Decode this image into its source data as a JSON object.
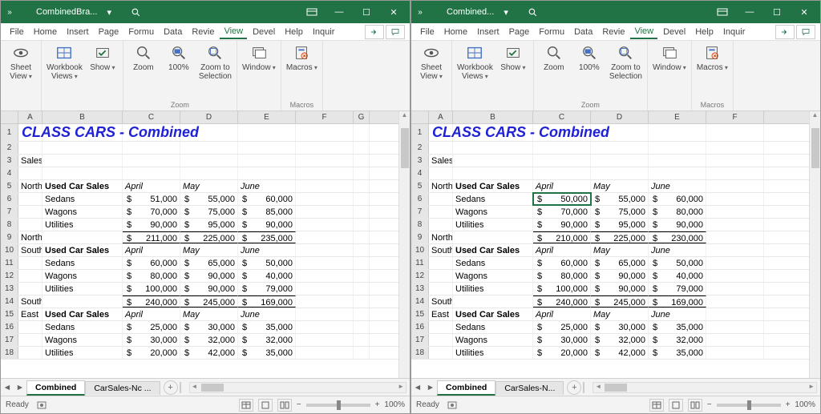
{
  "windows": [
    {
      "doc_name": "CombinedBra...",
      "selected_cell": null,
      "selected_value": null,
      "rows": [
        [
          "North",
          "Used Car Sales",
          "April",
          "May",
          "June"
        ],
        [
          "",
          "Sedans",
          "$   51,000",
          "$   55,000",
          "$   60,000"
        ],
        [
          "",
          "Wagons",
          "$   70,000",
          "$   75,000",
          "$   85,000"
        ],
        [
          "",
          "Utilities",
          "$   90,000",
          "$   95,000",
          "$   90,000"
        ],
        [
          "North Total",
          "",
          "$ 211,000",
          "$ 225,000",
          "$ 235,000"
        ],
        [
          "South",
          "Used Car Sales",
          "April",
          "May",
          "June"
        ],
        [
          "",
          "Sedans",
          "$   60,000",
          "$   65,000",
          "$   50,000"
        ],
        [
          "",
          "Wagons",
          "$   80,000",
          "$   90,000",
          "$   40,000"
        ],
        [
          "",
          "Utilities",
          "$ 100,000",
          "$   90,000",
          "$   79,000"
        ],
        [
          "South Total",
          "",
          "$ 240,000",
          "$ 245,000",
          "$ 169,000"
        ],
        [
          "East",
          "Used Car Sales",
          "April",
          "May",
          "June"
        ],
        [
          "",
          "Sedans",
          "$   25,000",
          "$   30,000",
          "$   35,000"
        ],
        [
          "",
          "Wagons",
          "$   30,000",
          "$   32,000",
          "$   32,000"
        ],
        [
          "",
          "Utilities",
          "$   20,000",
          "$   42,000",
          "$   35,000"
        ]
      ],
      "tabs": {
        "active": "Combined",
        "other": "CarSales-Nc ..."
      }
    },
    {
      "doc_name": "Combined...",
      "selected_cell": "C6",
      "selected_value": "$   50,000",
      "rows": [
        [
          "North",
          "Used Car Sales",
          "April",
          "May",
          "June"
        ],
        [
          "",
          "Sedans",
          "$   50,000",
          "$   55,000",
          "$   60,000"
        ],
        [
          "",
          "Wagons",
          "$   70,000",
          "$   75,000",
          "$   80,000"
        ],
        [
          "",
          "Utilities",
          "$   90,000",
          "$   95,000",
          "$   90,000"
        ],
        [
          "North Total",
          "",
          "$ 210,000",
          "$ 225,000",
          "$ 230,000"
        ],
        [
          "South",
          "Used Car Sales",
          "April",
          "May",
          "June"
        ],
        [
          "",
          "Sedans",
          "$   60,000",
          "$   65,000",
          "$   50,000"
        ],
        [
          "",
          "Wagons",
          "$   80,000",
          "$   90,000",
          "$   40,000"
        ],
        [
          "",
          "Utilities",
          "$ 100,000",
          "$   90,000",
          "$   79,000"
        ],
        [
          "South Total",
          "",
          "$ 240,000",
          "$ 245,000",
          "$ 169,000"
        ],
        [
          "East",
          "Used Car Sales",
          "April",
          "May",
          "June"
        ],
        [
          "",
          "Sedans",
          "$   25,000",
          "$   30,000",
          "$   35,000"
        ],
        [
          "",
          "Wagons",
          "$   30,000",
          "$   32,000",
          "$   32,000"
        ],
        [
          "",
          "Utilities",
          "$   20,000",
          "$   42,000",
          "$   35,000"
        ]
      ],
      "tabs": {
        "active": "Combined",
        "other": "CarSales-N..."
      }
    }
  ],
  "common": {
    "title_text": "CLASS CARS - Combined",
    "subtitle": "Sales Figures to June",
    "menus": [
      "File",
      "Home",
      "Insert",
      "Page",
      "Formu",
      "Data",
      "Revie",
      "View",
      "Devel",
      "Help",
      "Inquir"
    ],
    "active_menu": "View",
    "ribbon": {
      "g1": [
        {
          "l": "Sheet\nView",
          "caret": true
        }
      ],
      "g2": [
        {
          "l": "Workbook\nViews",
          "caret": true
        },
        {
          "l": "Show",
          "caret": true
        }
      ],
      "g3": [
        {
          "l": "Zoom"
        },
        {
          "l": "100%"
        },
        {
          "l": "Zoom to\nSelection"
        }
      ],
      "g3_label": "Zoom",
      "g4": [
        {
          "l": "Window",
          "caret": true
        }
      ],
      "g5": [
        {
          "l": "Macros",
          "caret": true
        }
      ],
      "g5_label": "Macros"
    },
    "col_headers": [
      "A",
      "B",
      "C",
      "D",
      "E",
      "F",
      "G"
    ],
    "col_widths_l": [
      30,
      100,
      72,
      72,
      72,
      72,
      20
    ],
    "col_widths_r": [
      30,
      100,
      72,
      72,
      72,
      72
    ],
    "row_labels": [
      "1",
      "2",
      "3",
      "4",
      "5",
      "6",
      "7",
      "8",
      "9",
      "10",
      "11",
      "12",
      "13",
      "14",
      "15",
      "16",
      "17",
      "18"
    ],
    "status_ready": "Ready",
    "zoom_text": "100%",
    "dollar": "$"
  }
}
